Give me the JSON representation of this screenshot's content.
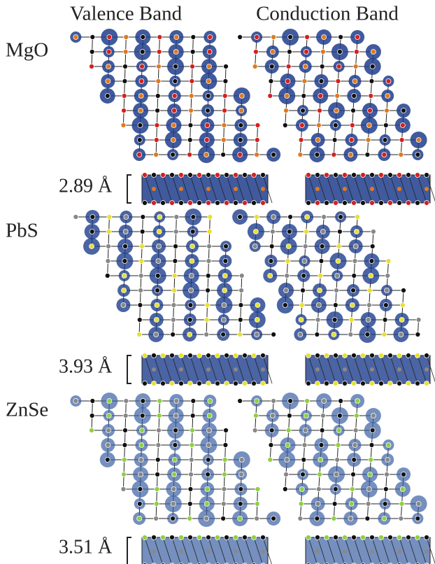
{
  "header": {
    "columns": [
      "Valence Band",
      "Conduction Band"
    ]
  },
  "rows": [
    {
      "material": "MgO",
      "thickness": "2.89 Å"
    },
    {
      "material": "PbS",
      "thickness": "3.93 Å"
    },
    {
      "material": "ZnSe",
      "thickness": "3.51 Å"
    }
  ]
}
